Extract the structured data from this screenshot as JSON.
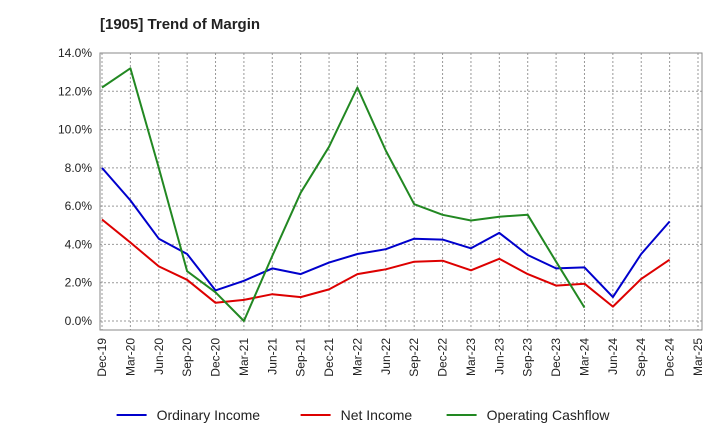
{
  "chart_data": {
    "type": "line",
    "title": "[1905]  Trend of Margin",
    "xlabel": "",
    "ylabel": "",
    "categories": [
      "Dec-19",
      "Mar-20",
      "Jun-20",
      "Sep-20",
      "Dec-20",
      "Mar-21",
      "Jun-21",
      "Sep-21",
      "Dec-21",
      "Mar-22",
      "Jun-22",
      "Sep-22",
      "Dec-22",
      "Mar-23",
      "Jun-23",
      "Sep-23",
      "Dec-23",
      "Mar-24",
      "Jun-24",
      "Sep-24",
      "Dec-24",
      "Mar-25"
    ],
    "ylim": [
      0,
      14
    ],
    "yticks": [
      0,
      2,
      4,
      6,
      8,
      10,
      12,
      14
    ],
    "ytick_labels": [
      "0.0%",
      "2.0%",
      "4.0%",
      "6.0%",
      "8.0%",
      "10.0%",
      "12.0%",
      "14.0%"
    ],
    "grid": true,
    "legend_position": "bottom",
    "series": [
      {
        "name": "Ordinary Income",
        "color": "#0000cc",
        "values": [
          8.0,
          6.3,
          4.3,
          3.5,
          1.6,
          2.1,
          2.75,
          2.45,
          3.05,
          3.5,
          3.75,
          4.3,
          4.25,
          3.8,
          4.6,
          3.45,
          2.75,
          2.8,
          1.25,
          3.5,
          5.2,
          null
        ]
      },
      {
        "name": "Net Income",
        "color": "#dd0000",
        "values": [
          5.3,
          4.1,
          2.85,
          2.15,
          0.95,
          1.1,
          1.4,
          1.25,
          1.65,
          2.45,
          2.7,
          3.1,
          3.15,
          2.65,
          3.25,
          2.45,
          1.85,
          1.95,
          0.75,
          2.2,
          3.2,
          null
        ]
      },
      {
        "name": "Operating Cashflow",
        "color": "#228822",
        "values": [
          12.2,
          13.2,
          8.0,
          2.6,
          1.5,
          0.0,
          3.4,
          6.7,
          9.1,
          12.2,
          8.9,
          6.1,
          5.55,
          5.25,
          5.45,
          5.55,
          3.1,
          0.7,
          null,
          null,
          null,
          null
        ]
      }
    ]
  }
}
